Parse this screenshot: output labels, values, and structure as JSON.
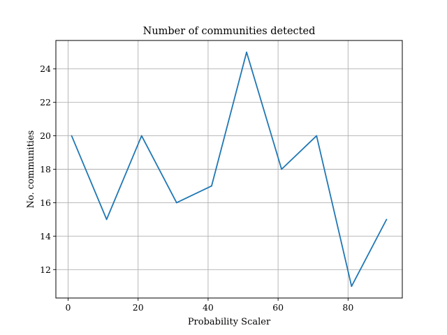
{
  "chart_data": {
    "type": "line",
    "title": "Number of communities detected",
    "xlabel": "Probability Scaler",
    "ylabel": "No. communities",
    "x": [
      1,
      11,
      21,
      31,
      41,
      51,
      61,
      71,
      81,
      91
    ],
    "series": [
      {
        "values": [
          20,
          15,
          20,
          16,
          17,
          25,
          18,
          20,
          11,
          15
        ],
        "color": "#1f77b4"
      }
    ],
    "xlim": [
      -3.5,
      95.5
    ],
    "ylim": [
      10.3,
      25.7
    ],
    "xticks": [
      0,
      20,
      40,
      60,
      80
    ],
    "yticks": [
      12,
      14,
      16,
      18,
      20,
      22,
      24
    ],
    "grid": true,
    "grid_color": "#b0b0b0"
  }
}
